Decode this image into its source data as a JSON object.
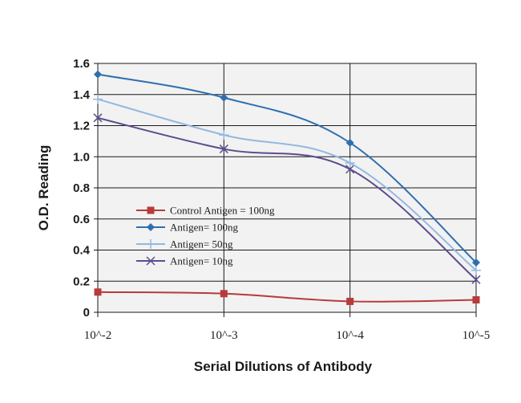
{
  "chart_data": {
    "type": "line",
    "xlabel": "Serial Dilutions of Antibody",
    "ylabel": "O.D. Reading",
    "categories": [
      "10^-2",
      "10^-3",
      "10^-4",
      "10^-5"
    ],
    "yticks": [
      "1.6",
      "1.4",
      "1.2",
      "1.0",
      "0.8",
      "0.6",
      "0.4",
      "0.2",
      "0"
    ],
    "ylim": [
      0,
      1.6
    ],
    "grid": true,
    "legend_position": "center-left",
    "series": [
      {
        "name": "Control Antigen = 100ng",
        "values": [
          0.13,
          0.12,
          0.07,
          0.08
        ],
        "color": "#b83a3a",
        "marker": "square"
      },
      {
        "name": "Antigen= 100ng",
        "values": [
          1.53,
          1.38,
          1.09,
          0.32
        ],
        "color": "#2f6fae",
        "marker": "diamond"
      },
      {
        "name": "Antigen= 50ng",
        "values": [
          1.37,
          1.14,
          0.96,
          0.27
        ],
        "color": "#93b8e0",
        "marker": "plus"
      },
      {
        "name": "Antigen= 10ng",
        "values": [
          1.25,
          1.05,
          0.92,
          0.21
        ],
        "color": "#5c4e8f",
        "marker": "x"
      }
    ]
  }
}
